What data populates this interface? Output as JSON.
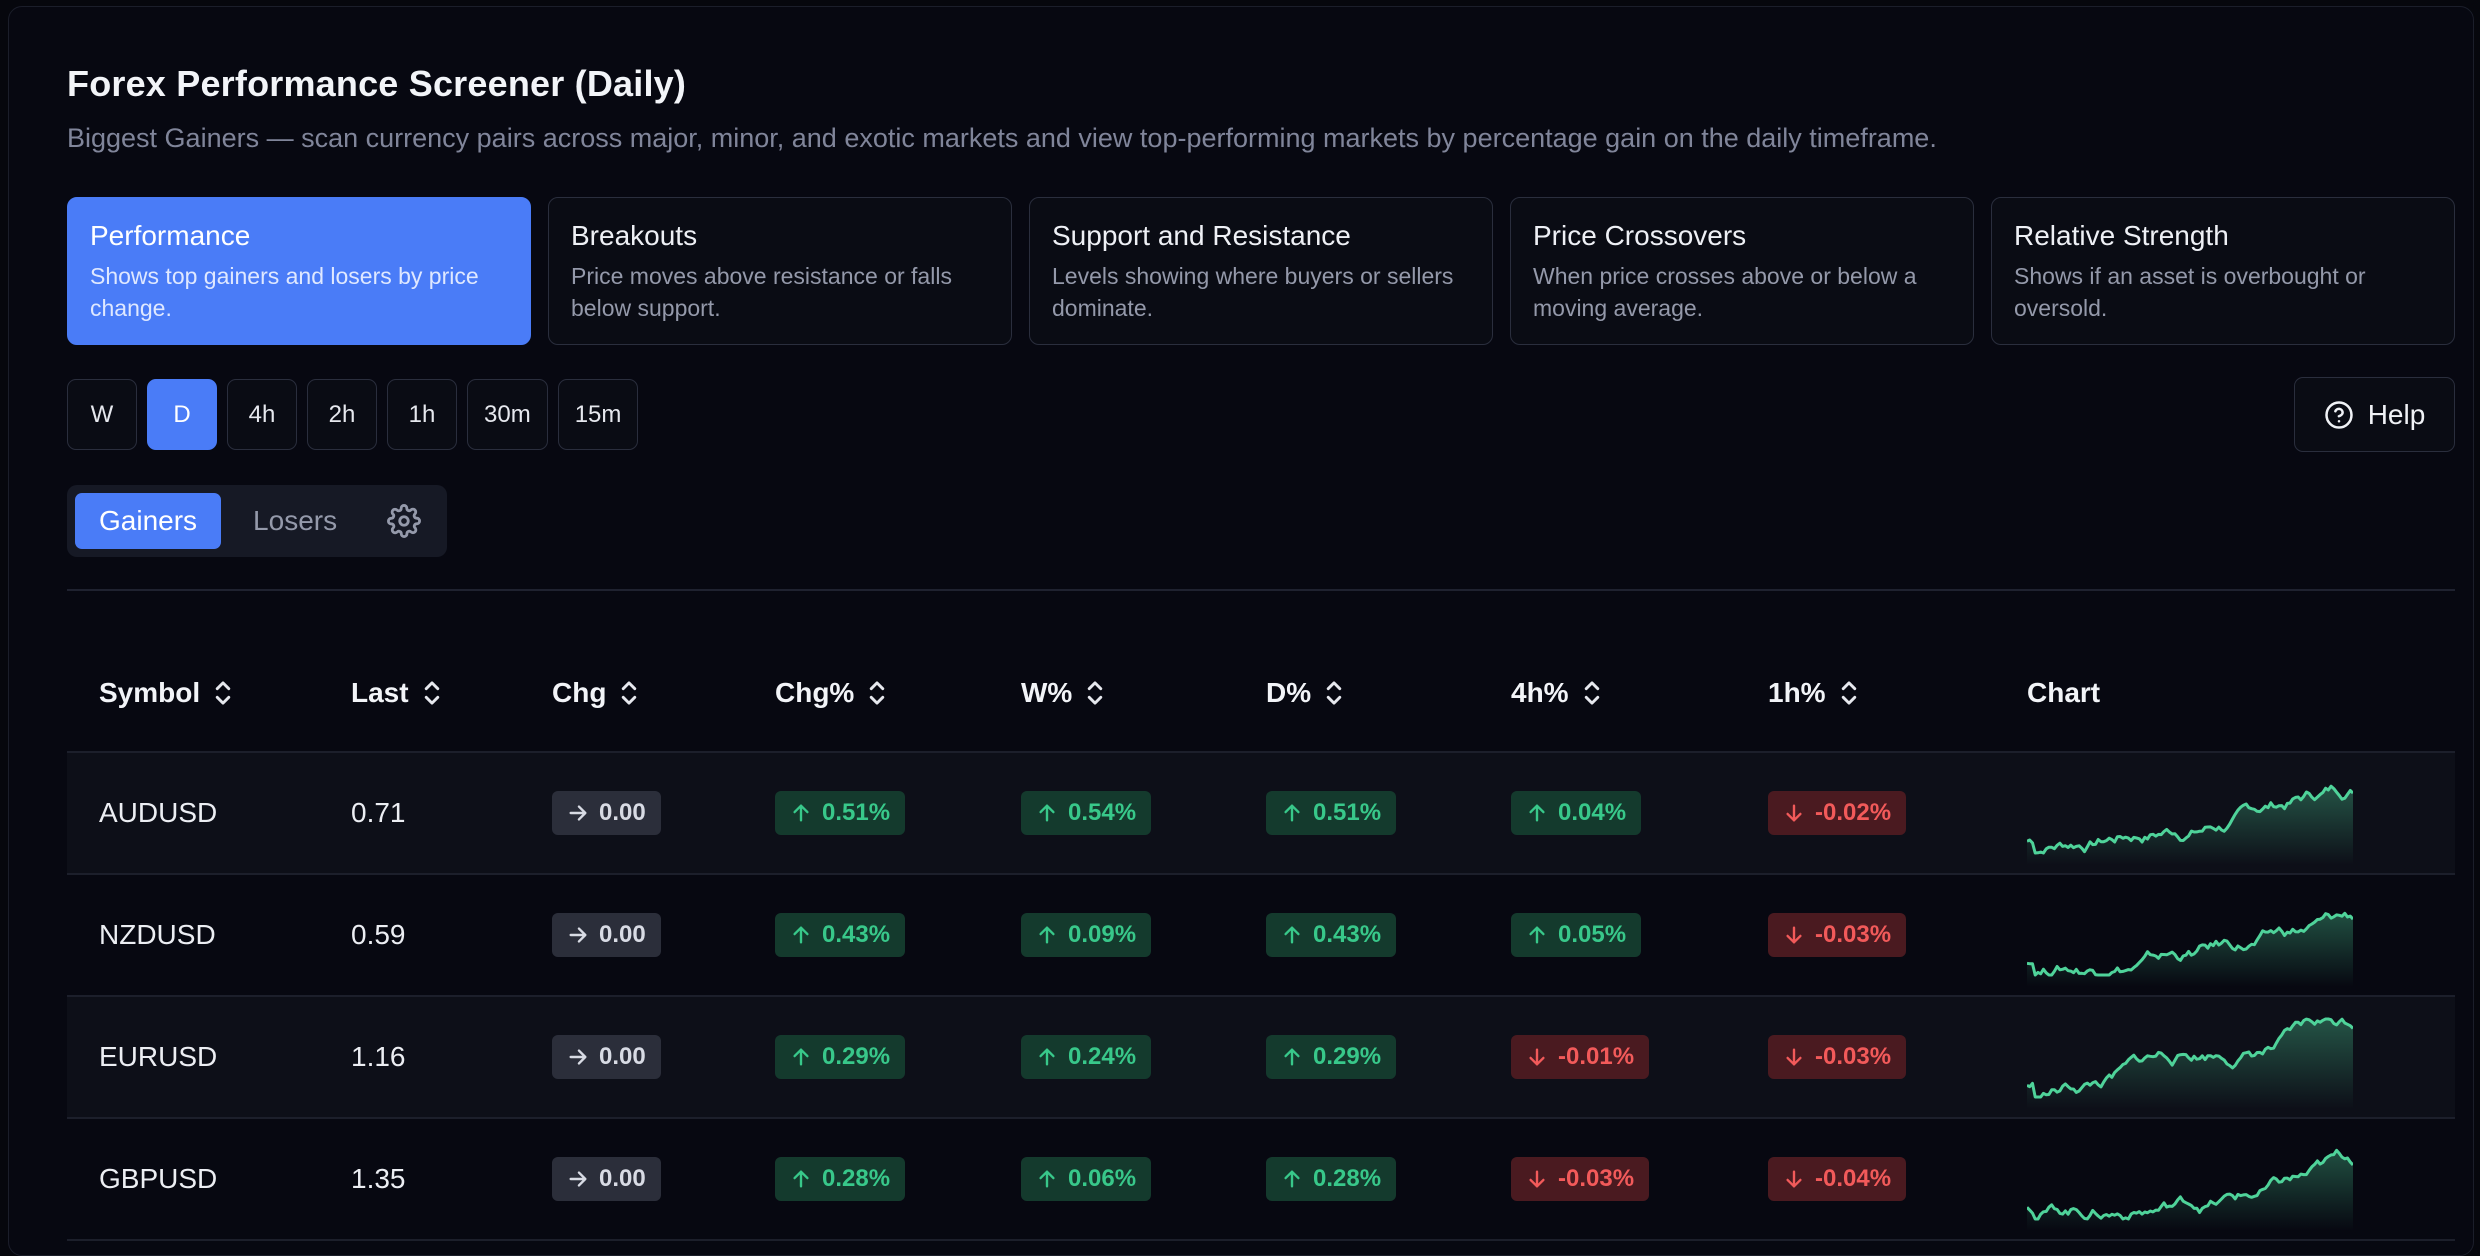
{
  "header": {
    "title": "Forex Performance Screener (Daily)",
    "subtitle": "Biggest Gainers — scan currency pairs across major, minor, and exotic markets and view top-performing markets by percentage gain on the daily timeframe."
  },
  "cards": [
    {
      "title": "Performance",
      "desc": "Shows top gainers and losers by price change.",
      "active": true
    },
    {
      "title": "Breakouts",
      "desc": "Price moves above resistance or falls below support.",
      "active": false
    },
    {
      "title": "Support and Resistance",
      "desc": "Levels showing where buyers or sellers dominate.",
      "active": false
    },
    {
      "title": "Price Crossovers",
      "desc": "When price crosses above or below a moving average.",
      "active": false
    },
    {
      "title": "Relative Strength",
      "desc": "Shows if an asset is overbought or oversold.",
      "active": false
    }
  ],
  "timeframes": [
    "W",
    "D",
    "4h",
    "2h",
    "1h",
    "30m",
    "15m"
  ],
  "active_timeframe": "D",
  "help_label": "Help",
  "segment": {
    "gainers": "Gainers",
    "losers": "Losers",
    "active": "Gainers"
  },
  "table": {
    "columns": [
      "Symbol",
      "Last",
      "Chg",
      "Chg%",
      "W%",
      "D%",
      "4h%",
      "1h%",
      "Chart"
    ],
    "rows": [
      {
        "symbol": "AUDUSD",
        "last": "0.71",
        "chg": "0.00",
        "chg_pct": "0.51%",
        "w_pct": "0.54%",
        "d_pct": "0.51%",
        "h4_pct": "0.04%",
        "h1_pct": "-0.02%"
      },
      {
        "symbol": "NZDUSD",
        "last": "0.59",
        "chg": "0.00",
        "chg_pct": "0.43%",
        "w_pct": "0.09%",
        "d_pct": "0.43%",
        "h4_pct": "0.05%",
        "h1_pct": "-0.03%"
      },
      {
        "symbol": "EURUSD",
        "last": "1.16",
        "chg": "0.00",
        "chg_pct": "0.29%",
        "w_pct": "0.24%",
        "d_pct": "0.29%",
        "h4_pct": "-0.01%",
        "h1_pct": "-0.03%"
      },
      {
        "symbol": "GBPUSD",
        "last": "1.35",
        "chg": "0.00",
        "chg_pct": "0.28%",
        "w_pct": "0.06%",
        "d_pct": "0.28%",
        "h4_pct": "-0.03%",
        "h1_pct": "-0.04%"
      }
    ]
  },
  "colors": {
    "accent": "#4a7cf7",
    "up": "#38c88a",
    "down": "#f25a5a",
    "spark": "#4fd39a"
  }
}
